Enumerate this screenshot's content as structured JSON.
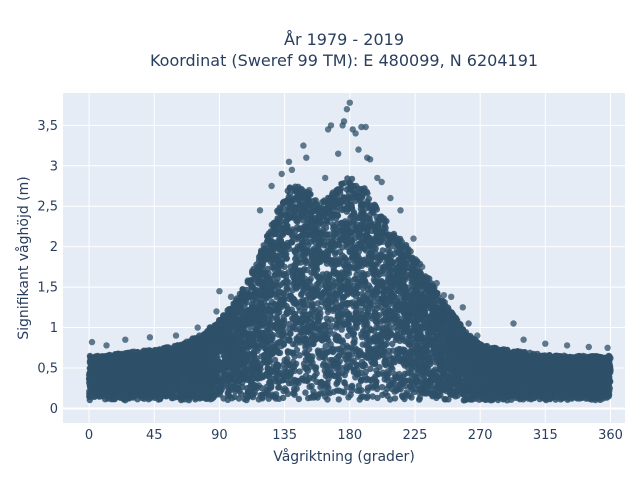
{
  "chart_data": {
    "type": "scatter",
    "title_line1": "År 1979 - 2019",
    "title_line2": "Koordinat (Sweref 99 TM): E 480099, N 6204191",
    "xlabel": "Vågriktning (grader)",
    "ylabel": "Signifikant våghöjd (m)",
    "xlim": [
      -18,
      370
    ],
    "ylim": [
      -0.18,
      3.9
    ],
    "x_ticks": [
      0,
      45,
      90,
      135,
      180,
      225,
      270,
      315,
      360
    ],
    "x_tick_labels": [
      "0",
      "45",
      "90",
      "135",
      "180",
      "225",
      "270",
      "315",
      "360"
    ],
    "y_ticks": [
      0,
      0.5,
      1,
      1.5,
      2,
      2.5,
      3,
      3.5
    ],
    "y_tick_labels": [
      "0",
      "0,5",
      "1",
      "1,5",
      "2",
      "2,5",
      "3",
      "3,5"
    ],
    "grid": true,
    "plot_background": "#e5ecf6",
    "marker_color": "#2e5068",
    "envelope": {
      "x": [
        0,
        10,
        20,
        30,
        40,
        50,
        60,
        70,
        80,
        90,
        100,
        110,
        120,
        130,
        140,
        150,
        160,
        170,
        180,
        190,
        200,
        210,
        220,
        230,
        240,
        250,
        260,
        270,
        280,
        290,
        300,
        310,
        320,
        330,
        340,
        350,
        360
      ],
      "y_max": [
        0.65,
        0.65,
        0.68,
        0.7,
        0.72,
        0.74,
        0.78,
        0.85,
        0.95,
        1.1,
        1.3,
        1.6,
        2.0,
        2.45,
        2.8,
        2.7,
        2.55,
        2.7,
        2.9,
        2.75,
        2.45,
        2.2,
        2.0,
        1.75,
        1.45,
        1.2,
        0.95,
        0.8,
        0.75,
        0.72,
        0.7,
        0.68,
        0.66,
        0.65,
        0.65,
        0.65,
        0.65
      ],
      "y_min": 0.1
    },
    "outliers": [
      {
        "x": 2,
        "y": 0.82
      },
      {
        "x": 12,
        "y": 0.78
      },
      {
        "x": 25,
        "y": 0.85
      },
      {
        "x": 42,
        "y": 0.88
      },
      {
        "x": 60,
        "y": 0.9
      },
      {
        "x": 75,
        "y": 1.0
      },
      {
        "x": 88,
        "y": 1.2
      },
      {
        "x": 90,
        "y": 1.45
      },
      {
        "x": 98,
        "y": 1.38
      },
      {
        "x": 118,
        "y": 2.45
      },
      {
        "x": 126,
        "y": 2.75
      },
      {
        "x": 133,
        "y": 2.9
      },
      {
        "x": 138,
        "y": 3.05
      },
      {
        "x": 140,
        "y": 2.95
      },
      {
        "x": 148,
        "y": 3.25
      },
      {
        "x": 150,
        "y": 3.1
      },
      {
        "x": 152,
        "y": 2.7
      },
      {
        "x": 163,
        "y": 2.85
      },
      {
        "x": 165,
        "y": 3.45
      },
      {
        "x": 167,
        "y": 3.5
      },
      {
        "x": 172,
        "y": 3.15
      },
      {
        "x": 175,
        "y": 3.5
      },
      {
        "x": 176,
        "y": 3.55
      },
      {
        "x": 178,
        "y": 3.7
      },
      {
        "x": 180,
        "y": 3.78
      },
      {
        "x": 182,
        "y": 3.45
      },
      {
        "x": 184,
        "y": 3.4
      },
      {
        "x": 186,
        "y": 3.2
      },
      {
        "x": 188,
        "y": 3.48
      },
      {
        "x": 191,
        "y": 3.48
      },
      {
        "x": 192,
        "y": 3.1
      },
      {
        "x": 194,
        "y": 3.08
      },
      {
        "x": 199,
        "y": 2.85
      },
      {
        "x": 202,
        "y": 2.8
      },
      {
        "x": 208,
        "y": 2.6
      },
      {
        "x": 215,
        "y": 2.45
      },
      {
        "x": 224,
        "y": 2.1
      },
      {
        "x": 230,
        "y": 1.75
      },
      {
        "x": 240,
        "y": 1.55
      },
      {
        "x": 245,
        "y": 1.4
      },
      {
        "x": 250,
        "y": 1.38
      },
      {
        "x": 258,
        "y": 1.25
      },
      {
        "x": 262,
        "y": 1.05
      },
      {
        "x": 268,
        "y": 0.9
      },
      {
        "x": 293,
        "y": 1.05
      },
      {
        "x": 300,
        "y": 0.85
      },
      {
        "x": 315,
        "y": 0.8
      },
      {
        "x": 330,
        "y": 0.78
      },
      {
        "x": 345,
        "y": 0.76
      },
      {
        "x": 358,
        "y": 0.75
      }
    ]
  }
}
